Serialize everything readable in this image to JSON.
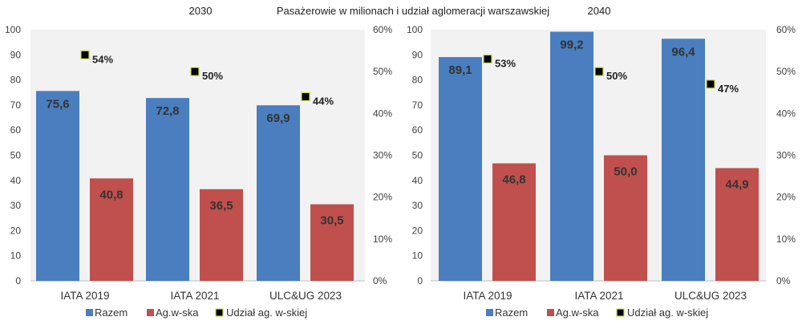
{
  "header": {
    "title": "Pasażerowie w milionach i udział aglomeracji warszawskiej"
  },
  "colors": {
    "razem": "#4A7EBF",
    "agw": "#C0504D",
    "udzial_marker": "#000000",
    "udzial_marker_border": "#C8D850",
    "plot_bg": "#F2F2F2",
    "grid": "#D9D9D9"
  },
  "chart_data": [
    {
      "type": "bar",
      "title": "2030",
      "categories": [
        "IATA 2019",
        "IATA 2021",
        "ULC&UG 2023"
      ],
      "series": [
        {
          "name": "Razem",
          "values": [
            75.6,
            72.8,
            69.9
          ],
          "labels": [
            "75,6",
            "72,8",
            "69,9"
          ]
        },
        {
          "name": "Ag.w-ska",
          "values": [
            40.8,
            36.5,
            30.5
          ],
          "labels": [
            "40,8",
            "36,5",
            "30,5"
          ]
        },
        {
          "name": "Udział ag. w-skiej",
          "axis": "right",
          "values": [
            54,
            50,
            44
          ],
          "labels": [
            "54%",
            "50%",
            "44%"
          ]
        }
      ],
      "ylim": [
        0,
        100
      ],
      "yticks": [
        "0",
        "10",
        "20",
        "30",
        "40",
        "50",
        "60",
        "70",
        "80",
        "90",
        "100"
      ],
      "y2lim": [
        0,
        60
      ],
      "y2ticks": [
        "0%",
        "10%",
        "20%",
        "30%",
        "40%",
        "50%",
        "60%"
      ],
      "grid": false,
      "legend": "bottom"
    },
    {
      "type": "bar",
      "title": "2040",
      "categories": [
        "IATA 2019",
        "IATA 2021",
        "ULC&UG 2023"
      ],
      "series": [
        {
          "name": "Razem",
          "values": [
            89.1,
            99.2,
            96.4
          ],
          "labels": [
            "89,1",
            "99,2",
            "96,4"
          ]
        },
        {
          "name": "Ag.w-ska",
          "values": [
            46.8,
            50.0,
            44.9
          ],
          "labels": [
            "46,8",
            "50,0",
            "44,9"
          ]
        },
        {
          "name": "Udział ag. w-skiej",
          "axis": "right",
          "values": [
            53,
            50,
            47
          ],
          "labels": [
            "53%",
            "50%",
            "47%"
          ]
        }
      ],
      "ylim": [
        0,
        100
      ],
      "yticks": [
        "0",
        "10",
        "20",
        "30",
        "40",
        "50",
        "60",
        "70",
        "80",
        "90",
        "100"
      ],
      "y2lim": [
        0,
        60
      ],
      "y2ticks": [
        "0%",
        "10%",
        "20%",
        "30%",
        "40%",
        "50%",
        "60%"
      ],
      "grid": false,
      "legend": "bottom"
    }
  ]
}
